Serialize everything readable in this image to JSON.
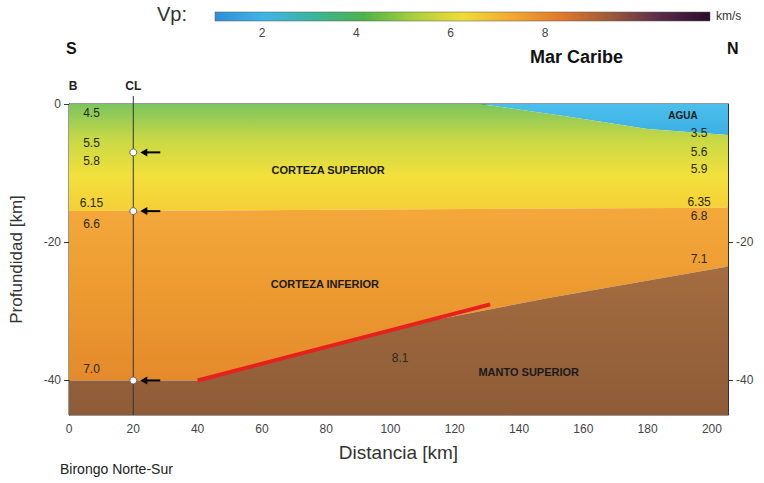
{
  "chart_data": {
    "type": "velocity_section",
    "x_label": "Distancia [km]",
    "y_label": "Profundidad [km]",
    "xlim": [
      0,
      205
    ],
    "xticks": [
      0,
      20,
      40,
      60,
      80,
      100,
      120,
      140,
      160,
      180,
      200
    ],
    "ylim": [
      -45,
      0
    ],
    "yticks": [
      0,
      -20,
      -40
    ],
    "y2lim": [
      -45,
      0
    ],
    "y2ticks": [
      -20,
      -40
    ],
    "grid": false,
    "caption": "Birongo Norte-Sur",
    "direction_labels": {
      "left": "S",
      "right": "N"
    },
    "region_label": "Mar Caribe",
    "colorbar": {
      "label": "Vp:",
      "unit": "km/s",
      "range": [
        1,
        11.5
      ],
      "ticks": [
        2,
        4,
        6,
        8
      ],
      "colors": [
        "#2f8fd8",
        "#3fb4e6",
        "#3bb59a",
        "#4cb34a",
        "#a9cf3c",
        "#f0dc36",
        "#f2a830",
        "#e0782a",
        "#9a5a38",
        "#5a2a4a",
        "#2a0c2a"
      ]
    },
    "layers": [
      {
        "name": "AGUA",
        "colors": [
          "#4cc0ec",
          "#3ab0e4"
        ],
        "polygon": [
          [
            128,
            0
          ],
          [
            205,
            0
          ],
          [
            205,
            -4.5
          ],
          [
            180,
            -3.6
          ],
          [
            155,
            -1.8
          ]
        ],
        "label_at": [
          191,
          -1.7
        ]
      },
      {
        "name": "CORTEZA SUPERIOR",
        "colors": [
          "#7cc55e",
          "#c9d845",
          "#f2e03c",
          "#f5cf36"
        ],
        "polygon": [
          [
            0,
            0
          ],
          [
            128,
            0
          ],
          [
            155,
            -1.8
          ],
          [
            180,
            -3.6
          ],
          [
            205,
            -4.5
          ],
          [
            205,
            -15
          ],
          [
            0,
            -15.5
          ]
        ],
        "label_at": [
          80.6,
          -9.5
        ]
      },
      {
        "name": "CORTEZA INFERIOR",
        "colors": [
          "#f4a83a",
          "#ec9a30",
          "#e48a2c"
        ],
        "polygon": [
          [
            0,
            -15.5
          ],
          [
            205,
            -15
          ],
          [
            205,
            -23.5
          ],
          [
            150,
            -28
          ],
          [
            100,
            -32.5
          ],
          [
            40,
            -40
          ],
          [
            0,
            -40
          ]
        ],
        "label_at": [
          79.6,
          -26
        ]
      },
      {
        "name": "MANTO SUPERIOR",
        "colors": [
          "#a46c40",
          "#8e5c38"
        ],
        "polygon": [
          [
            0,
            -40
          ],
          [
            40,
            -40
          ],
          [
            100,
            -32.5
          ],
          [
            150,
            -28
          ],
          [
            205,
            -23.5
          ],
          [
            205,
            -45
          ],
          [
            0,
            -45
          ]
        ],
        "label_at": [
          143,
          -38.8
        ]
      }
    ],
    "vp_labels": [
      {
        "text": "4.5",
        "x": 7,
        "y": -1.3
      },
      {
        "text": "5.5",
        "x": 7,
        "y": -5.6
      },
      {
        "text": "5.8",
        "x": 7,
        "y": -8.3
      },
      {
        "text": "6.15",
        "x": 7,
        "y": -14.3
      },
      {
        "text": "6.6",
        "x": 7,
        "y": -17.4
      },
      {
        "text": "7.0",
        "x": 7,
        "y": -38.3
      },
      {
        "text": "3.5",
        "x": 196,
        "y": -4.2
      },
      {
        "text": "5.6",
        "x": 196,
        "y": -6.9
      },
      {
        "text": "5.9",
        "x": 196,
        "y": -9.4
      },
      {
        "text": "6.35",
        "x": 196,
        "y": -14.2
      },
      {
        "text": "6.8",
        "x": 196,
        "y": -16.2
      },
      {
        "text": "7.1",
        "x": 196,
        "y": -22.4
      },
      {
        "text": "8.1",
        "x": 103,
        "y": -36.8
      }
    ],
    "interface_line": {
      "color": "#e8201c",
      "x": [
        40,
        131
      ],
      "y": [
        -40,
        -29
      ]
    },
    "well": {
      "x": 20,
      "label": "CL",
      "marker_depths": [
        -7,
        -15.5,
        -40
      ]
    },
    "top_labels": [
      {
        "text": "B",
        "x": 0
      }
    ]
  }
}
